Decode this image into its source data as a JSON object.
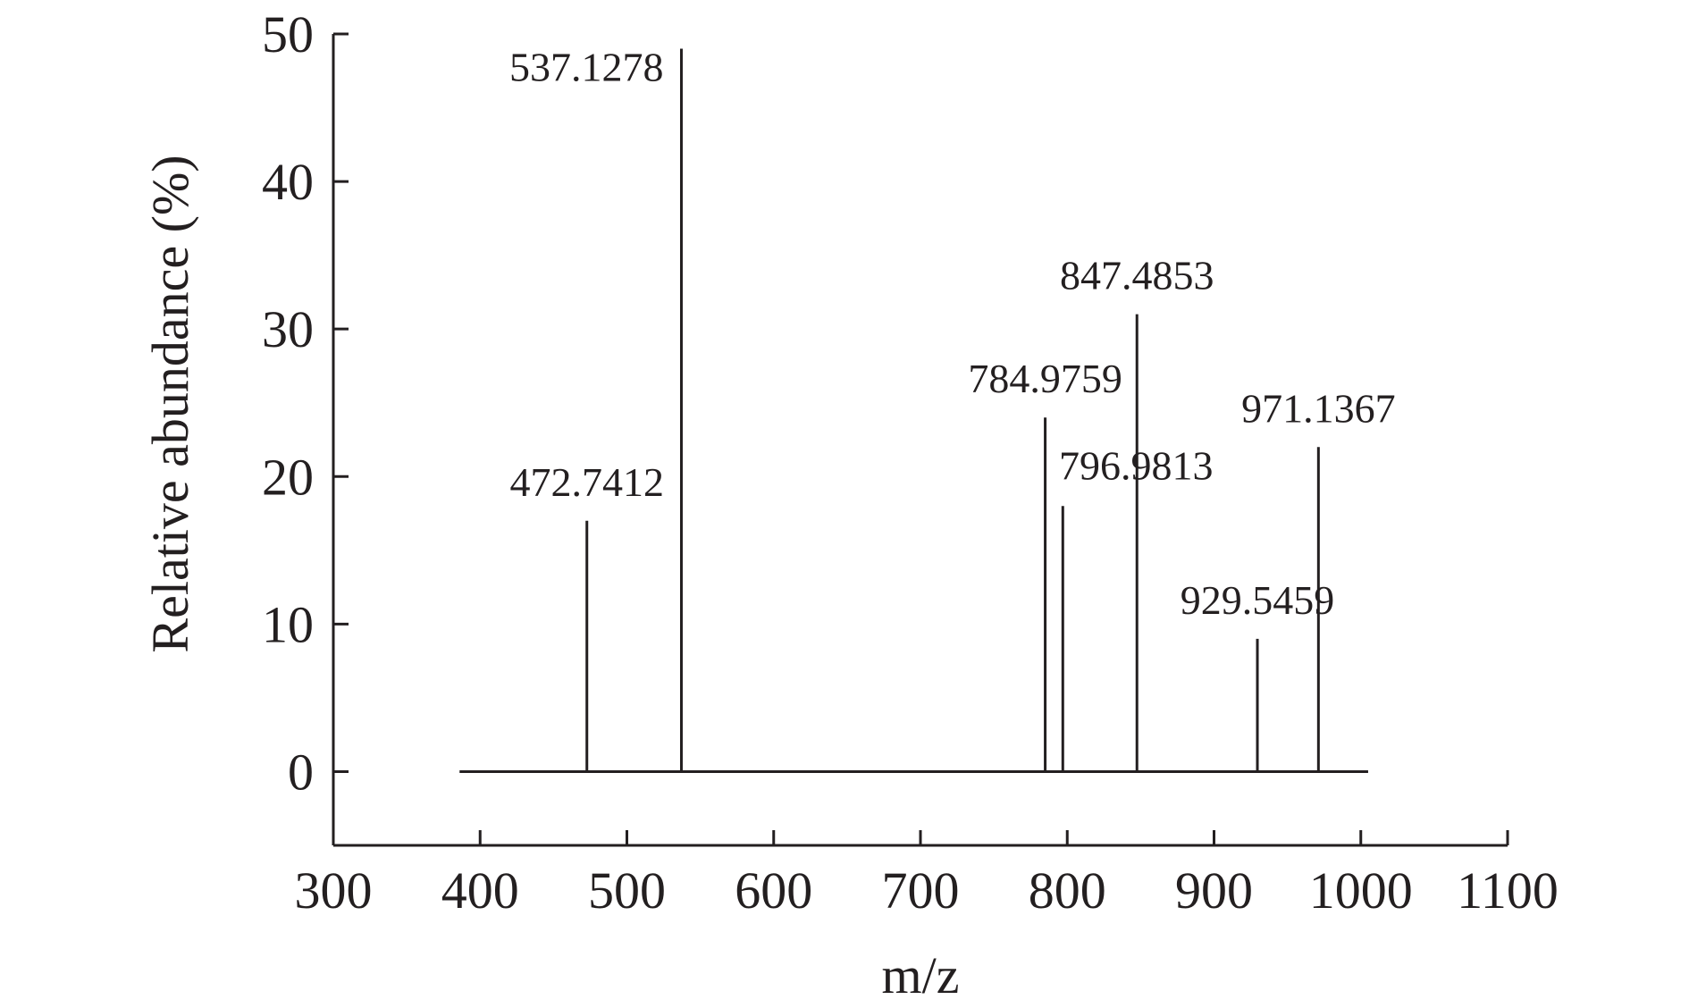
{
  "chart_data": {
    "type": "bar",
    "xlabel": "m/z",
    "ylabel": "Relative abundance (%)",
    "xlim": [
      300,
      1100
    ],
    "ylim": [
      -5,
      50
    ],
    "x_ticks": [
      300,
      400,
      500,
      600,
      700,
      800,
      900,
      1000,
      1100
    ],
    "y_ticks": [
      0,
      10,
      20,
      30,
      40,
      50
    ],
    "baseline_range": [
      386,
      1005
    ],
    "grid": false,
    "peaks": [
      {
        "mz": 472.7412,
        "label": "472.7412",
        "abundance": 17
      },
      {
        "mz": 537.1278,
        "label": "537.1278",
        "abundance": 49
      },
      {
        "mz": 784.9759,
        "label": "784.9759",
        "abundance": 24
      },
      {
        "mz": 796.9813,
        "label": "796.9813",
        "abundance": 18
      },
      {
        "mz": 847.4853,
        "label": "847.4853",
        "abundance": 31
      },
      {
        "mz": 929.5459,
        "label": "929.5459",
        "abundance": 9
      },
      {
        "mz": 971.1367,
        "label": "971.1367",
        "abundance": 22
      }
    ]
  }
}
